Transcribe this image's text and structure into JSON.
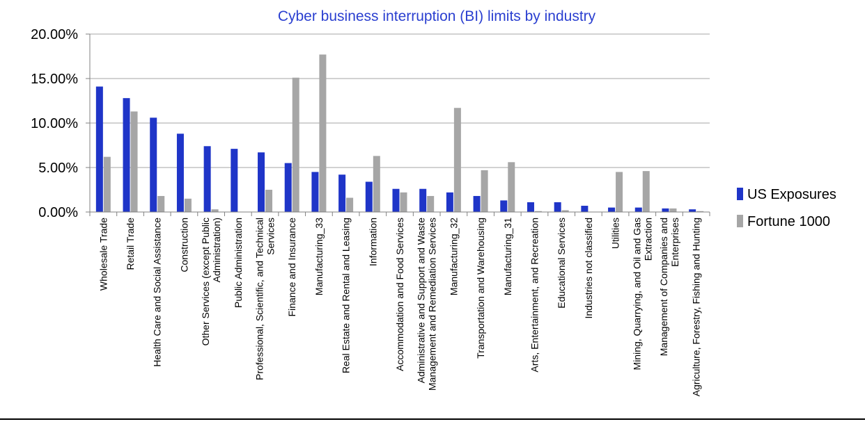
{
  "chart_data": {
    "type": "bar",
    "title": "Cyber business interruption (BI) limits by industry",
    "xlabel": "",
    "ylabel": "",
    "ylim": [
      0,
      0.2
    ],
    "yticks": [
      "0.00%",
      "5.00%",
      "10.00%",
      "15.00%",
      "20.00%"
    ],
    "grid": true,
    "legend": "right",
    "categories": [
      "Wholesale Trade",
      "Retail Trade",
      "Health Care and Social Assistance",
      "Construction",
      "Other Services (except Public Administration)",
      "Public Administration",
      "Professional, Scientific, and Technical Services",
      "Finance and Insurance",
      "Manufacturing_33",
      "Real Estate and Rental and Leasing",
      "Information",
      "Accommodation and Food Services",
      "Administrative and Support and Waste Management and Remediation Services",
      "Manufacturing_32",
      "Transportation and Warehousing",
      "Manufacturing_31",
      "Arts, Entertainment, and Recreation",
      "Educational Services",
      "Industries not classified",
      "Utilities",
      "Mining, Quarrying, and Oil and Gas Extraction",
      "Management of Companies and Enterprises",
      "Agriculture, Forestry, Fishing and Hunting"
    ],
    "category_lines": [
      [
        "Wholesale Trade"
      ],
      [
        "Retail Trade"
      ],
      [
        "Health Care and Social Assistance"
      ],
      [
        "Construction"
      ],
      [
        "Other Services (except Public",
        "Administration)"
      ],
      [
        "Public Administration"
      ],
      [
        "Professional, Scientific, and Technical",
        "Services"
      ],
      [
        "Finance and Insurance"
      ],
      [
        "Manufacturing_33"
      ],
      [
        "Real Estate and Rental and Leasing"
      ],
      [
        "Information"
      ],
      [
        "Accommodation and Food Services"
      ],
      [
        "Administrative and Support and Waste",
        "Management and Remediation Services"
      ],
      [
        "Manufacturing_32"
      ],
      [
        "Transportation and Warehousing"
      ],
      [
        "Manufacturing_31"
      ],
      [
        "Arts, Entertainment, and Recreation"
      ],
      [
        "Educational Services"
      ],
      [
        "Industries not classified"
      ],
      [
        "Utilities"
      ],
      [
        "Mining, Quarrying, and Oil and Gas",
        "Extraction"
      ],
      [
        "Management of Companies and",
        "Enterprises"
      ],
      [
        "Agriculture, Forestry, Fishing and Hunting"
      ]
    ],
    "series": [
      {
        "name": "US Exposures",
        "color": "#1f35c8",
        "values": [
          0.141,
          0.128,
          0.106,
          0.088,
          0.074,
          0.071,
          0.067,
          0.055,
          0.045,
          0.042,
          0.034,
          0.026,
          0.026,
          0.022,
          0.018,
          0.013,
          0.011,
          0.011,
          0.007,
          0.005,
          0.005,
          0.004,
          0.003
        ]
      },
      {
        "name": "Fortune 1000",
        "color": "#a6a6a6",
        "values": [
          0.062,
          0.113,
          0.018,
          0.015,
          0.003,
          0.0,
          0.025,
          0.151,
          0.177,
          0.016,
          0.063,
          0.022,
          0.018,
          0.117,
          0.047,
          0.056,
          0.001,
          0.002,
          0.0,
          0.045,
          0.046,
          0.004,
          0.001
        ]
      }
    ],
    "colors": {
      "gridline": "#a6a6a6",
      "axis": "#808080",
      "title": "#2a3fd0",
      "text": "#000000"
    }
  }
}
